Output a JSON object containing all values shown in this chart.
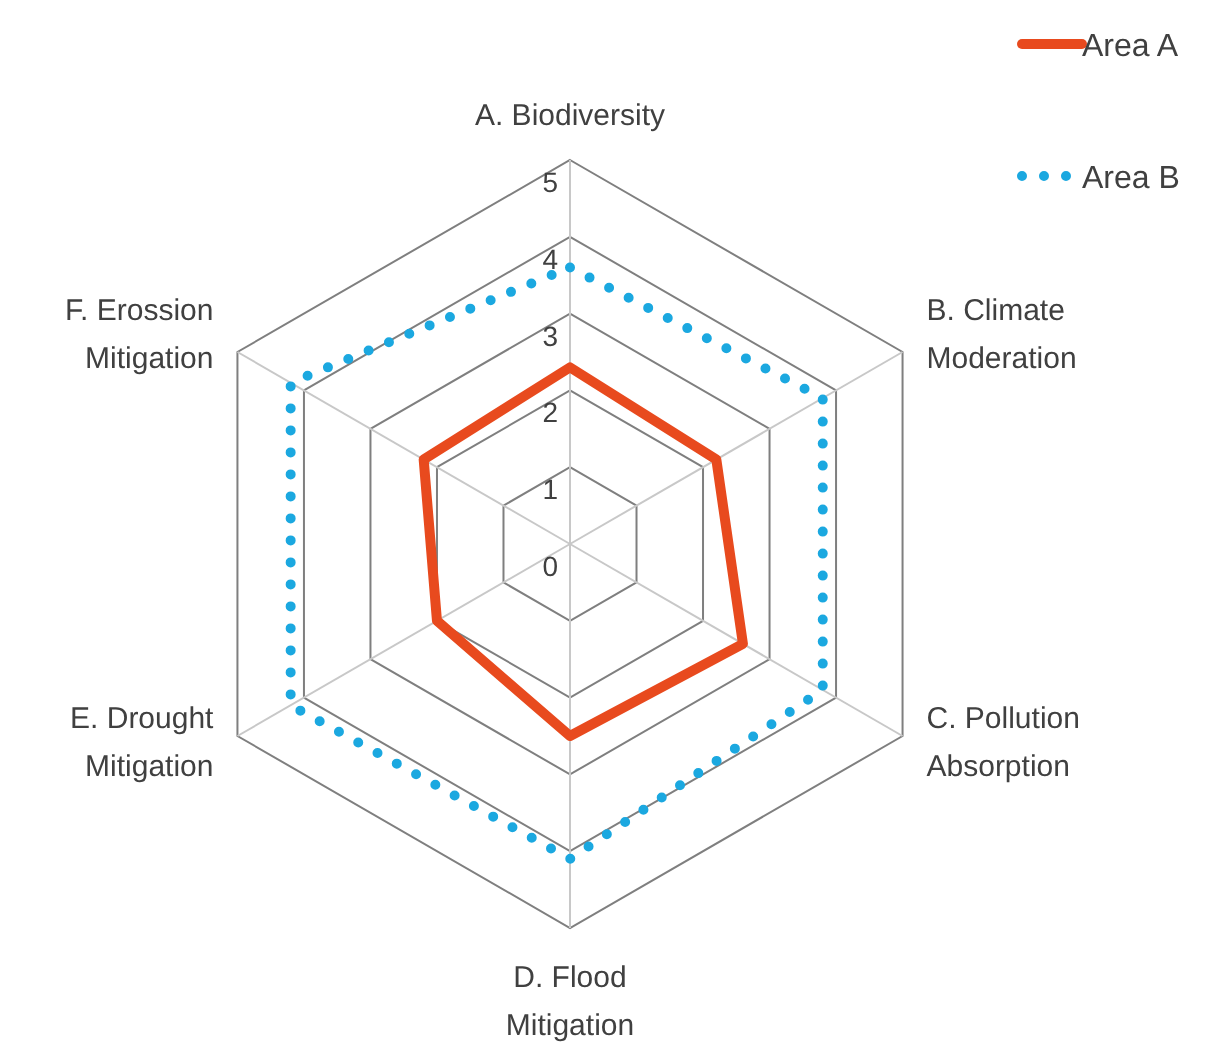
{
  "chart_data": {
    "type": "radar",
    "categories": [
      "A. Biodiversity",
      "B. Climate Moderation",
      "C. Pollution Absorption",
      "D. Flood Mitigation",
      "E. Drought Mitigation",
      "F. Erossion Mitigation"
    ],
    "series": [
      {
        "name": "Area A",
        "color": "#e84a1e",
        "values": [
          2.3,
          2.2,
          2.6,
          2.5,
          2.0,
          2.2
        ],
        "line_style": "solid"
      },
      {
        "name": "Area B",
        "color": "#1ba8e0",
        "values": [
          3.6,
          3.8,
          3.8,
          4.1,
          4.2,
          4.2
        ],
        "line_style": "dotted"
      }
    ],
    "ylim": [
      0,
      5
    ],
    "yticks": [
      0,
      1,
      2,
      3,
      4,
      5
    ],
    "grid": true,
    "legend": "top right"
  }
}
